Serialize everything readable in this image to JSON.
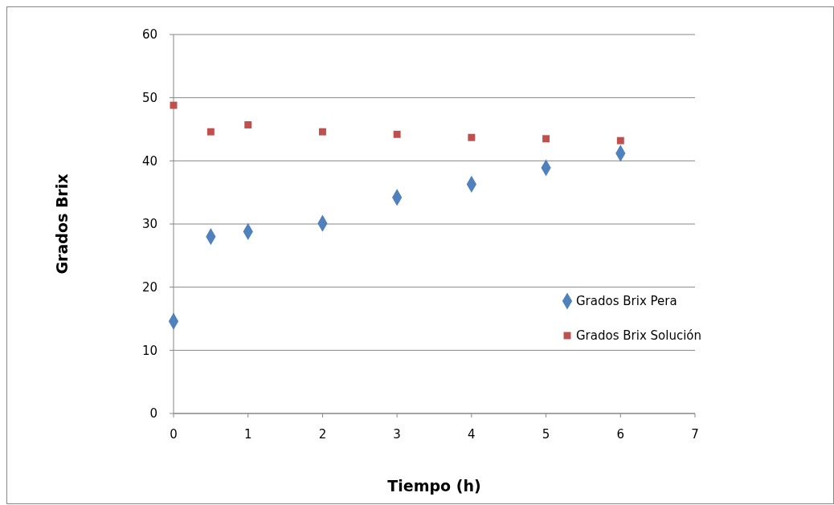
{
  "chart_data": {
    "type": "scatter",
    "xlabel": "Tiempo (h)",
    "ylabel": "Grados Brix",
    "series": [
      {
        "name": "Grados Brix Pera",
        "color": "#4f81bd",
        "marker": "diamond",
        "x": [
          0,
          0.5,
          1,
          2,
          3,
          4,
          5,
          6
        ],
        "values": [
          14.6,
          28.0,
          28.8,
          30.1,
          34.2,
          36.3,
          38.9,
          41.2
        ]
      },
      {
        "name": "Grados Brix Solución",
        "color": "#c0504d",
        "marker": "square",
        "x": [
          0,
          0.5,
          1,
          2,
          3,
          4,
          5,
          6
        ],
        "values": [
          48.8,
          44.6,
          45.7,
          44.6,
          44.2,
          43.7,
          43.5,
          43.2
        ]
      }
    ],
    "xlim": [
      0,
      7
    ],
    "xticks": [
      0,
      1,
      2,
      3,
      4,
      5,
      6,
      7
    ],
    "ylim": [
      0,
      60
    ],
    "yticks": [
      0,
      10,
      20,
      30,
      40,
      50,
      60
    ],
    "grid": "y",
    "legend": "right"
  }
}
